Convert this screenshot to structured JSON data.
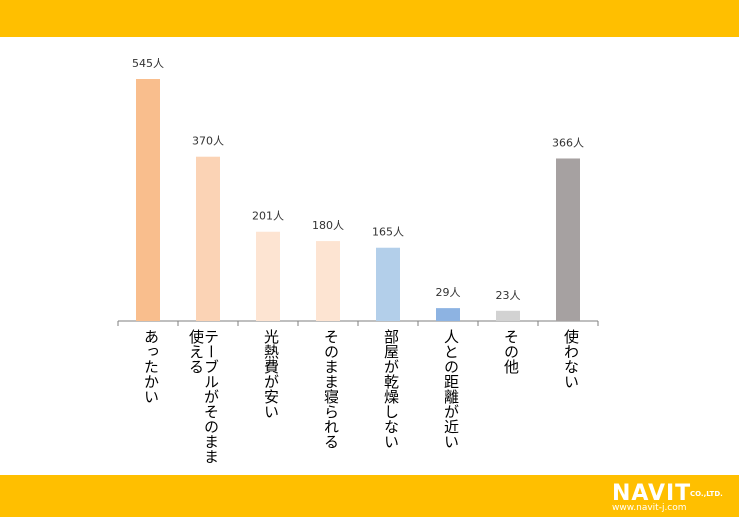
{
  "chart_data": {
    "type": "bar",
    "categories": [
      "あったかい",
      "テーブルがそのまま\n使える",
      "光熱費が安い",
      "そのまま寝られる",
      "部屋が乾燥しない",
      "人との距離が近い",
      "その他",
      "使わない"
    ],
    "values": [
      545,
      370,
      201,
      180,
      165,
      29,
      23,
      366
    ],
    "value_labels": [
      "545人",
      "370人",
      "201人",
      "180人",
      "165人",
      "29人",
      "23人",
      "366人"
    ],
    "colors": [
      "#F9BE8D",
      "#FBD3B5",
      "#FDE4D2",
      "#FDE4D2",
      "#B3CFEA",
      "#8DB3E2",
      "#D2D2D2",
      "#A6A1A1"
    ],
    "unit": "人",
    "ylim": [
      0,
      545
    ],
    "grid": false,
    "legend": "none",
    "title": "",
    "xlabel": "",
    "ylabel": ""
  },
  "branding": {
    "logo_main": "NAVIT",
    "logo_sub": "CO.,LTD.",
    "logo_url": "www.navit-j.com"
  },
  "colors": {
    "band": "#FFBF00",
    "axis": "#7f7f7f"
  }
}
